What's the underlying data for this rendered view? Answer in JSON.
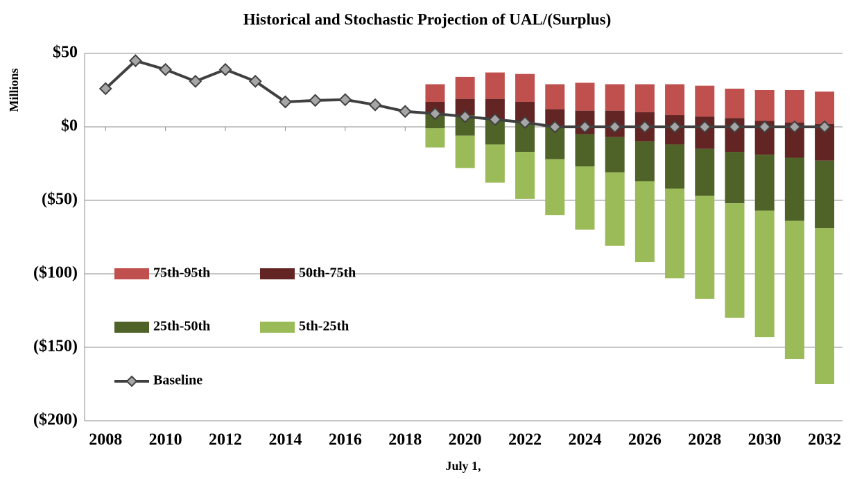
{
  "chart_data": {
    "type": "bar",
    "title": "Historical and Stochastic Projection of UAL/(Surplus)",
    "ylabel": "Millions",
    "xlabel": "July 1,",
    "x": [
      2019,
      2020,
      2021,
      2022,
      2023,
      2024,
      2025,
      2026,
      2027,
      2028,
      2029,
      2030,
      2031,
      2032
    ],
    "series": [
      {
        "name": "75th-95th",
        "color": "#c0504d",
        "values": [
          [
            17,
            29
          ],
          [
            19,
            34
          ],
          [
            19,
            37
          ],
          [
            17,
            36
          ],
          [
            12,
            29
          ],
          [
            11,
            30
          ],
          [
            11,
            29
          ],
          [
            10,
            29
          ],
          [
            8,
            29
          ],
          [
            7,
            28
          ],
          [
            6,
            26
          ],
          [
            4,
            25
          ],
          [
            3,
            25
          ],
          [
            2,
            24
          ]
        ]
      },
      {
        "name": "50th-75th",
        "color": "#632523",
        "values": [
          [
            9,
            17
          ],
          [
            8,
            19
          ],
          [
            5,
            19
          ],
          [
            3,
            17
          ],
          [
            0,
            12
          ],
          [
            -5,
            11
          ],
          [
            -7,
            11
          ],
          [
            -10,
            10
          ],
          [
            -12,
            8
          ],
          [
            -15,
            7
          ],
          [
            -17,
            6
          ],
          [
            -19,
            4
          ],
          [
            -21,
            3
          ],
          [
            -23,
            2
          ]
        ]
      },
      {
        "name": "25th-50th",
        "color": "#4f6228",
        "values": [
          [
            -1,
            9
          ],
          [
            -6,
            8
          ],
          [
            -12,
            5
          ],
          [
            -17,
            3
          ],
          [
            -22,
            0
          ],
          [
            -27,
            -5
          ],
          [
            -31,
            -7
          ],
          [
            -37,
            -10
          ],
          [
            -42,
            -12
          ],
          [
            -47,
            -15
          ],
          [
            -52,
            -17
          ],
          [
            -57,
            -19
          ],
          [
            -64,
            -21
          ],
          [
            -69,
            -23
          ]
        ]
      },
      {
        "name": "5th-25th",
        "color": "#9bbb59",
        "values": [
          [
            -14,
            -1
          ],
          [
            -28,
            -6
          ],
          [
            -38,
            -12
          ],
          [
            -49,
            -17
          ],
          [
            -60,
            -22
          ],
          [
            -70,
            -27
          ],
          [
            -81,
            -31
          ],
          [
            -92,
            -37
          ],
          [
            -103,
            -42
          ],
          [
            -117,
            -47
          ],
          [
            -130,
            -52
          ],
          [
            -143,
            -57
          ],
          [
            -158,
            -64
          ],
          [
            -175,
            -69
          ]
        ]
      }
    ],
    "line": {
      "name": "Baseline",
      "color": "#404040",
      "x": [
        2008,
        2009,
        2010,
        2011,
        2012,
        2013,
        2014,
        2015,
        2016,
        2017,
        2018,
        2019,
        2020,
        2021,
        2022,
        2023,
        2024,
        2025,
        2026,
        2027,
        2028,
        2029,
        2030,
        2031,
        2032
      ],
      "values": [
        26,
        45,
        39,
        31,
        39,
        31,
        17,
        18,
        18.5,
        15,
        10.5,
        9,
        7,
        5,
        3,
        0,
        0,
        0,
        0,
        0,
        0,
        0,
        0,
        0,
        0
      ]
    },
    "xlim": [
      2007.3,
      2032.6
    ],
    "xticks": [
      2008,
      2010,
      2012,
      2014,
      2016,
      2018,
      2020,
      2022,
      2024,
      2026,
      2028,
      2030,
      2032
    ],
    "ylim": [
      -200,
      50
    ],
    "yticks": [
      {
        "value": 50,
        "label": "$50"
      },
      {
        "value": 0,
        "label": "$0"
      },
      {
        "value": -50,
        "label": "($50)"
      },
      {
        "value": -100,
        "label": "($100)"
      },
      {
        "value": -150,
        "label": "($150)"
      },
      {
        "value": -200,
        "label": "($200)"
      }
    ],
    "grid": true
  }
}
